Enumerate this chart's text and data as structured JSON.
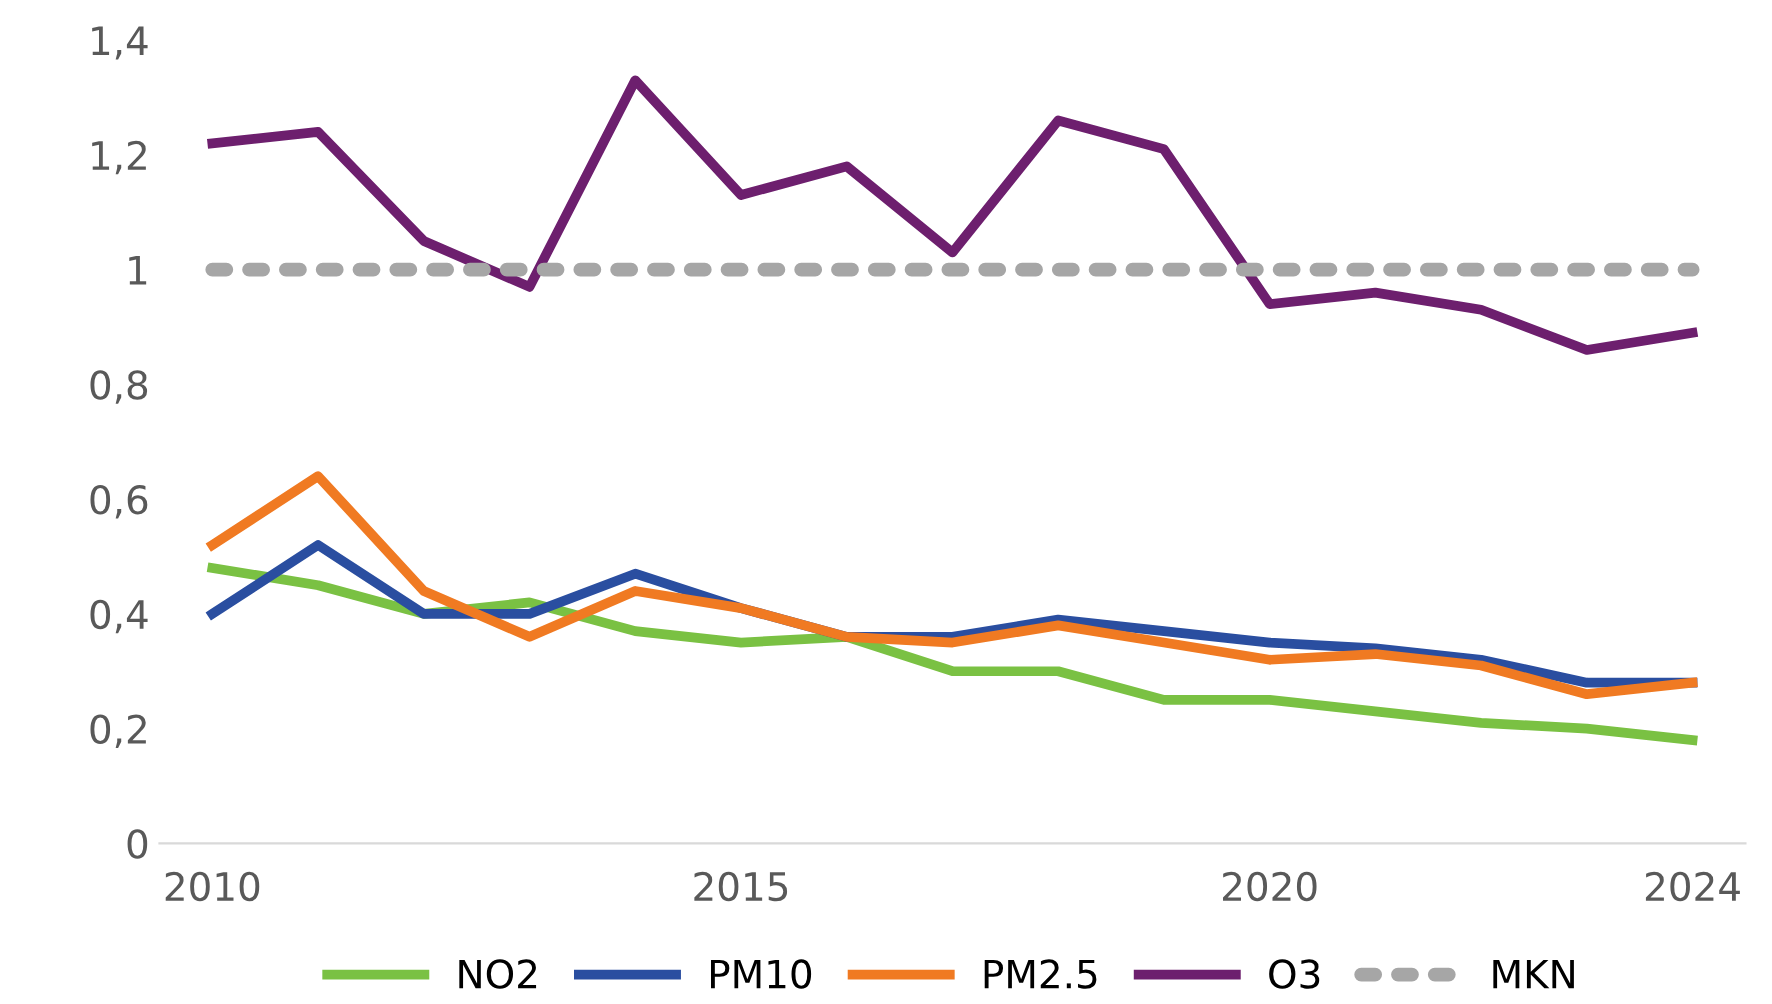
{
  "chart_data": {
    "type": "line",
    "x": [
      2010,
      2011,
      2012,
      2013,
      2014,
      2015,
      2016,
      2017,
      2018,
      2019,
      2020,
      2021,
      2022,
      2023,
      2024
    ],
    "series": [
      {
        "name": "NO2",
        "color": "#7ac143",
        "values": [
          0.48,
          0.45,
          0.4,
          0.42,
          0.37,
          0.35,
          0.36,
          0.3,
          0.3,
          0.25,
          0.25,
          0.23,
          0.21,
          0.2,
          0.18
        ]
      },
      {
        "name": "PM10",
        "color": "#2a4ea0",
        "values": [
          0.4,
          0.52,
          0.4,
          0.4,
          0.47,
          0.41,
          0.36,
          0.36,
          0.39,
          0.37,
          0.35,
          0.34,
          0.32,
          0.28,
          0.28
        ]
      },
      {
        "name": "PM2.5",
        "color": "#f07a22",
        "values": [
          0.52,
          0.64,
          0.44,
          0.36,
          0.44,
          0.41,
          0.36,
          0.35,
          0.38,
          0.35,
          0.32,
          0.33,
          0.31,
          0.26,
          0.28
        ]
      },
      {
        "name": "O3",
        "color": "#6d1f6e",
        "values": [
          1.22,
          1.24,
          1.05,
          0.97,
          1.33,
          1.13,
          1.18,
          1.03,
          1.26,
          1.21,
          0.94,
          0.96,
          0.93,
          0.86,
          0.89
        ]
      },
      {
        "name": "MKN",
        "color": "#a6a6a6",
        "line_style": "dotted",
        "values": [
          1,
          1,
          1,
          1,
          1,
          1,
          1,
          1,
          1,
          1,
          1,
          1,
          1,
          1,
          1
        ]
      }
    ],
    "xlim": [
      2009.5,
      2024.5
    ],
    "xticks": [
      2010,
      2015,
      2020,
      2024
    ],
    "ylim": [
      0,
      1.4
    ],
    "yticks": [
      0,
      {
        "value": 0.2,
        "label": "0,2"
      },
      {
        "value": 0.4,
        "label": "0,4"
      },
      {
        "value": 0.6,
        "label": "0,6"
      },
      {
        "value": 0.8,
        "label": "0,8"
      },
      1,
      {
        "value": 1.2,
        "label": "1,2"
      },
      {
        "value": 1.4,
        "label": "1,4"
      }
    ],
    "grid": false,
    "legend": "bottom",
    "marker": "none",
    "line_style": "solid"
  }
}
